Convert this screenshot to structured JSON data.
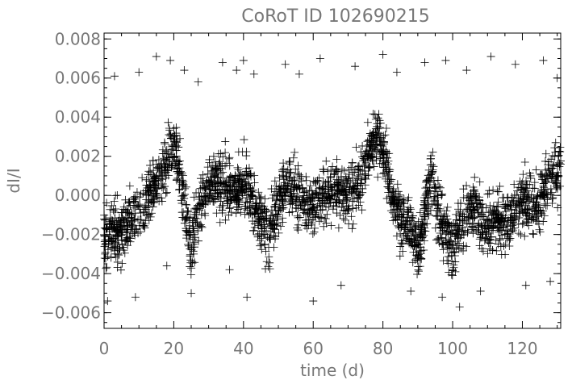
{
  "chart_data": {
    "type": "scatter",
    "title": "CoRoT ID 102690215",
    "xlabel": "time (d)",
    "ylabel": "dI/I",
    "xlim": [
      0,
      131
    ],
    "ylim": [
      -0.0068,
      0.0083
    ],
    "xticks": [
      0,
      20,
      40,
      60,
      80,
      100,
      120
    ],
    "xtick_labels": [
      "0",
      "20",
      "40",
      "60",
      "80",
      "100",
      "120"
    ],
    "yticks": [
      -0.006,
      -0.004,
      -0.002,
      0.0,
      0.002,
      0.004,
      0.006,
      0.008
    ],
    "ytick_labels": [
      "−0.006",
      "−0.004",
      "−0.002",
      "0.000",
      "0.002",
      "0.004",
      "0.006",
      "0.008"
    ],
    "marker": "plus",
    "grid": false,
    "trend": {
      "x": [
        0,
        5,
        10,
        14,
        17,
        19,
        20,
        21,
        22,
        24,
        25,
        27,
        30,
        34,
        37,
        40,
        43,
        45,
        47,
        50,
        53,
        56,
        60,
        63,
        66,
        70,
        73,
        76,
        78,
        80,
        82,
        85,
        88,
        90,
        92,
        94,
        96,
        98,
        100,
        103,
        106,
        110,
        113,
        116,
        120,
        124,
        128,
        131
      ],
      "values": [
        -0.0022,
        -0.0018,
        -0.0008,
        0.0004,
        0.0012,
        0.0022,
        0.0028,
        0.002,
        0.0005,
        -0.0015,
        -0.0028,
        -0.001,
        0.0008,
        0.0005,
        0.0002,
        0.0007,
        -0.0005,
        -0.0015,
        -0.0022,
        -0.0002,
        0.0006,
        -0.0002,
        -0.0008,
        0.0004,
        0.0002,
        0.0002,
        0.0005,
        0.0022,
        0.0032,
        0.0024,
        0.0004,
        -0.0012,
        -0.0018,
        -0.0028,
        -0.0012,
        0.0012,
        -0.001,
        -0.0018,
        -0.0024,
        -0.0012,
        -0.0008,
        -0.0016,
        -0.0012,
        -0.0015,
        -0.0002,
        -0.0006,
        0.0008,
        0.0015
      ]
    },
    "outliers": [
      {
        "x": 3,
        "y": 0.0061
      },
      {
        "x": 10,
        "y": 0.0063
      },
      {
        "x": 15,
        "y": 0.0071
      },
      {
        "x": 19,
        "y": 0.0069
      },
      {
        "x": 23,
        "y": 0.0064
      },
      {
        "x": 27,
        "y": 0.0058
      },
      {
        "x": 34,
        "y": 0.0068
      },
      {
        "x": 38,
        "y": 0.0064
      },
      {
        "x": 40,
        "y": 0.0069
      },
      {
        "x": 43,
        "y": 0.0062
      },
      {
        "x": 52,
        "y": 0.0067
      },
      {
        "x": 56,
        "y": 0.0062
      },
      {
        "x": 62,
        "y": 0.007
      },
      {
        "x": 72,
        "y": 0.0066
      },
      {
        "x": 80,
        "y": 0.0072
      },
      {
        "x": 84,
        "y": 0.0063
      },
      {
        "x": 92,
        "y": 0.0068
      },
      {
        "x": 98,
        "y": 0.0069
      },
      {
        "x": 104,
        "y": 0.0064
      },
      {
        "x": 111,
        "y": 0.0071
      },
      {
        "x": 118,
        "y": 0.0067
      },
      {
        "x": 126,
        "y": 0.0069
      },
      {
        "x": 130,
        "y": 0.006
      },
      {
        "x": 1,
        "y": -0.0054
      },
      {
        "x": 9,
        "y": -0.0052
      },
      {
        "x": 18,
        "y": -0.0036
      },
      {
        "x": 25,
        "y": -0.005
      },
      {
        "x": 36,
        "y": -0.0038
      },
      {
        "x": 41,
        "y": -0.0052
      },
      {
        "x": 60,
        "y": -0.0054
      },
      {
        "x": 68,
        "y": -0.0046
      },
      {
        "x": 88,
        "y": -0.0049
      },
      {
        "x": 97,
        "y": -0.0052
      },
      {
        "x": 102,
        "y": -0.0057
      },
      {
        "x": 108,
        "y": -0.0049
      },
      {
        "x": 121,
        "y": -0.0046
      },
      {
        "x": 128,
        "y": -0.0044
      }
    ]
  }
}
